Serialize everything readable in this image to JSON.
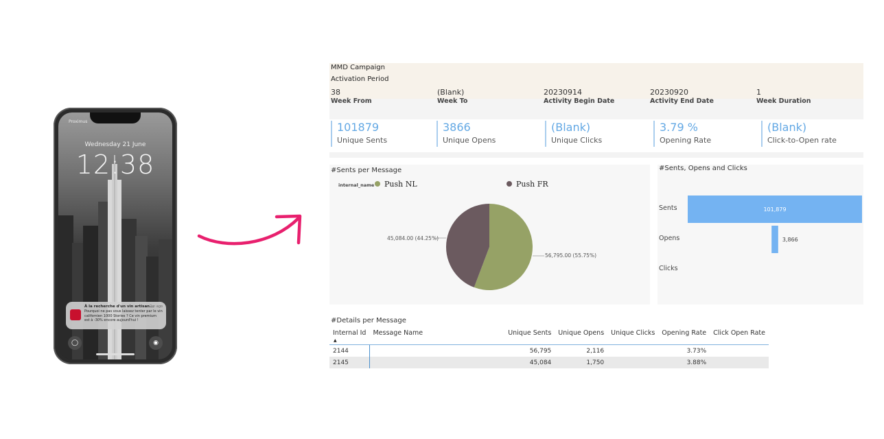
{
  "phone": {
    "carrier": "Proximus",
    "lock_date": "Wednesday 21 June",
    "lock_time": "12:38",
    "notification": {
      "title": "À la recherche d'un vin artisan...",
      "time": "2m ago",
      "body": "Pourquoi ne pas vous laissez tenter par le vin californien 1000 Stories ? Ce vin premium est à -30% encore aujourd'hui !"
    },
    "icons": {
      "flashlight": "flashlight-icon",
      "camera": "camera-icon"
    }
  },
  "arrow": {
    "color": "#e8206e"
  },
  "dashboard": {
    "campaign": "MMD Campaign",
    "period_label": "Activation Period",
    "week_fields": [
      {
        "value": "38",
        "label": "Week From"
      },
      {
        "value": "(Blank)",
        "label": "Week To"
      },
      {
        "value": "20230914",
        "label": "Activity Begin Date"
      },
      {
        "value": "20230920",
        "label": "Activity End Date"
      },
      {
        "value": "1",
        "label": "Week Duration"
      }
    ],
    "kpis": [
      {
        "value": "101879",
        "label": "Unique Sents"
      },
      {
        "value": "3866",
        "label": "Unique Opens"
      },
      {
        "value": "(Blank)",
        "label": "Unique Clicks"
      },
      {
        "value": "3.79 %",
        "label": "Opening Rate"
      },
      {
        "value": "(Blank)",
        "label": "Click-to-Open rate"
      }
    ],
    "pie_title": "#Sents per Message",
    "pie_legend_title": "internal_name",
    "bar_title": "#Sents, Opens and Clicks",
    "table_title": "#Details per Message",
    "table": {
      "columns": [
        "Internal Id",
        "Message Name",
        "Unique Sents",
        "Unique Opens",
        "Unique Clicks",
        "Opening Rate",
        "Click Open Rate"
      ],
      "rows": [
        [
          "2144",
          "",
          "56,795",
          "2,116",
          "",
          "3.73%",
          ""
        ],
        [
          "2145",
          "",
          "45,084",
          "1,750",
          "",
          "3.88%",
          ""
        ]
      ]
    }
  },
  "chart_data": [
    {
      "type": "pie",
      "title": "#Sents per Message",
      "legend_title": "internal_name",
      "legend_position": "top",
      "slices": [
        {
          "name": "Push NL",
          "value": 56795.0,
          "label": "56,795.00 (55.75%)",
          "color": "#96a266"
        },
        {
          "name": "Push FR",
          "value": 45084.0,
          "label": "45,084.00 (44.25%)",
          "color": "#6b5a5f"
        }
      ]
    },
    {
      "type": "bar",
      "orientation": "horizontal",
      "title": "#Sents, Opens and Clicks",
      "categories": [
        "Sents",
        "Opens",
        "Clicks"
      ],
      "values": [
        101879,
        3866,
        0
      ],
      "value_labels": [
        "101,879",
        "3,866",
        ""
      ],
      "color": "#74b3f2",
      "grid": false
    }
  ]
}
